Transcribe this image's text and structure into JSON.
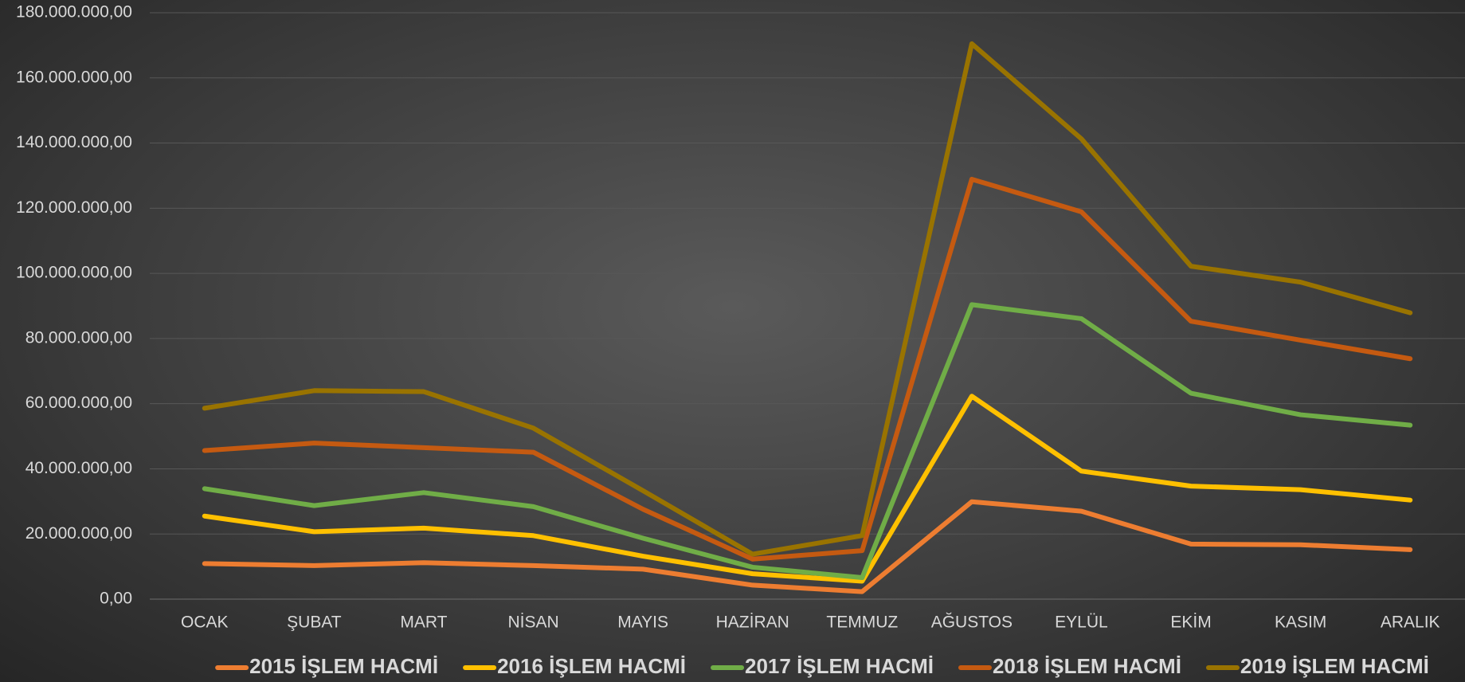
{
  "chart_data": {
    "type": "line",
    "categories": [
      "OCAK",
      "ŞUBAT",
      "MART",
      "NİSAN",
      "MAYIS",
      "HAZİRAN",
      "TEMMUZ",
      "AĞUSTOS",
      "EYLÜL",
      "EKİM",
      "KASIM",
      "ARALIK"
    ],
    "series": [
      {
        "name": "2015 İŞLEM HACMİ",
        "color": "#ed7d31",
        "values": [
          10900000,
          10300000,
          11200000,
          10300000,
          9200000,
          4300000,
          2300000,
          29900000,
          27000000,
          16900000,
          16700000,
          15200000
        ]
      },
      {
        "name": "2016 İŞLEM HACMİ",
        "color": "#ffc000",
        "values": [
          25500000,
          20700000,
          21800000,
          19500000,
          13200000,
          7800000,
          5500000,
          62300000,
          39300000,
          34700000,
          33600000,
          30400000
        ]
      },
      {
        "name": "2017 İŞLEM HACMİ",
        "color": "#70ad47",
        "values": [
          33900000,
          28700000,
          32700000,
          28400000,
          18700000,
          9800000,
          6600000,
          90400000,
          86100000,
          63200000,
          56600000,
          53400000
        ]
      },
      {
        "name": "2018 İŞLEM HACMİ",
        "color": "#c55a11",
        "values": [
          45600000,
          47900000,
          46500000,
          45100000,
          27600000,
          12300000,
          14900000,
          128900000,
          118900000,
          85300000,
          79500000,
          73800000
        ]
      },
      {
        "name": "2019 İŞLEM HACMİ",
        "color": "#997300",
        "values": [
          58600000,
          64000000,
          63700000,
          52500000,
          33300000,
          13800000,
          19500000,
          170500000,
          141300000,
          102200000,
          97300000,
          87900000
        ]
      }
    ],
    "ylim": [
      0,
      180000000
    ],
    "yticks": [
      {
        "value": 0,
        "label": "0,00"
      },
      {
        "value": 20000000,
        "label": "20.000.000,00"
      },
      {
        "value": 40000000,
        "label": "40.000.000,00"
      },
      {
        "value": 60000000,
        "label": "60.000.000,00"
      },
      {
        "value": 80000000,
        "label": "80.000.000,00"
      },
      {
        "value": 100000000,
        "label": "100.000.000,00"
      },
      {
        "value": 120000000,
        "label": "120.000.000,00"
      },
      {
        "value": 140000000,
        "label": "140.000.000,00"
      },
      {
        "value": 160000000,
        "label": "160.000.000,00"
      },
      {
        "value": 180000000,
        "label": "180.000.000,00"
      }
    ],
    "grid": true,
    "legend": "bottom"
  }
}
